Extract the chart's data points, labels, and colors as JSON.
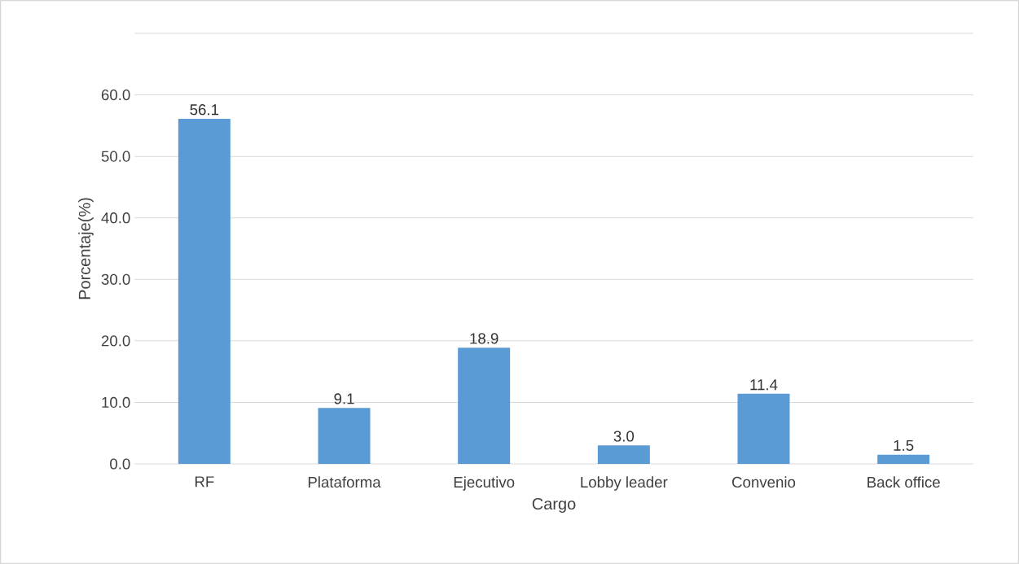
{
  "chart_data": {
    "type": "bar",
    "xlabel": "Cargo",
    "ylabel": "Porcentaje(%)",
    "categories": [
      "RF",
      "Plataforma",
      "Ejecutivo",
      "Lobby leader",
      "Convenio",
      "Back office"
    ],
    "values": [
      56.1,
      9.1,
      18.9,
      3.0,
      11.4,
      1.5
    ],
    "value_labels": [
      "56.1",
      "9.1",
      "18.9",
      "3.0",
      "11.4",
      "1.5"
    ],
    "color": "#5b9bd5",
    "ylim": [
      0,
      70
    ],
    "yticks": [
      {
        "value": 0,
        "label": "0.0"
      },
      {
        "value": 10,
        "label": "10.0"
      },
      {
        "value": 20,
        "label": "20.0"
      },
      {
        "value": 30,
        "label": "30.0"
      },
      {
        "value": 40,
        "label": "40.0"
      },
      {
        "value": 50,
        "label": "50.0"
      },
      {
        "value": 60,
        "label": "60.0"
      },
      {
        "value": 70,
        "label": null
      }
    ],
    "grid": "y"
  }
}
